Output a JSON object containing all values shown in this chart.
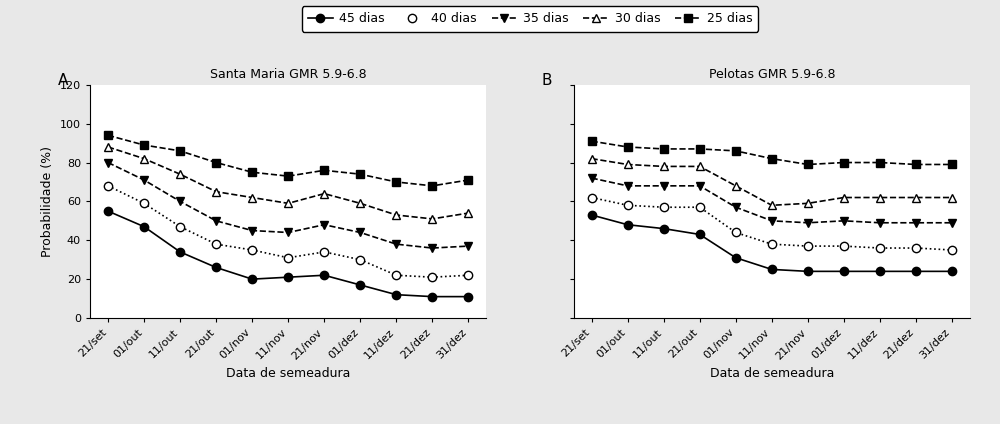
{
  "x_labels": [
    "21/set",
    "01/out",
    "11/out",
    "21/out",
    "01/nov",
    "11/nov",
    "21/nov",
    "01/dez",
    "11/dez",
    "21/dez",
    "31/dez"
  ],
  "santa_maria": {
    "title": "Santa Maria GMR 5.9-6.8",
    "dias45": [
      55,
      47,
      34,
      26,
      20,
      21,
      22,
      17,
      12,
      11,
      11
    ],
    "dias40": [
      68,
      59,
      47,
      38,
      35,
      31,
      34,
      30,
      22,
      21,
      22
    ],
    "dias35": [
      80,
      71,
      60,
      50,
      45,
      44,
      48,
      44,
      38,
      36,
      37
    ],
    "dias30": [
      88,
      82,
      74,
      65,
      62,
      59,
      64,
      59,
      53,
      51,
      54
    ],
    "dias25": [
      94,
      89,
      86,
      80,
      75,
      73,
      76,
      74,
      70,
      68,
      71
    ]
  },
  "pelotas": {
    "title": "Pelotas GMR 5.9-6.8",
    "dias45": [
      53,
      48,
      46,
      43,
      31,
      25,
      24,
      24,
      24,
      24,
      24
    ],
    "dias40": [
      62,
      58,
      57,
      57,
      44,
      38,
      37,
      37,
      36,
      36,
      35
    ],
    "dias35": [
      72,
      68,
      68,
      68,
      57,
      50,
      49,
      50,
      49,
      49,
      49
    ],
    "dias30": [
      82,
      79,
      78,
      78,
      68,
      58,
      59,
      62,
      62,
      62,
      62
    ],
    "dias25": [
      91,
      88,
      87,
      87,
      86,
      82,
      79,
      80,
      80,
      79,
      79
    ]
  },
  "ylabel": "Probabilidade (%)",
  "xlabel": "Data de semeadura",
  "ylim": [
    0,
    120
  ],
  "yticks": [
    0,
    20,
    40,
    60,
    80,
    100,
    120
  ],
  "fig_facecolor": "#e8e8e8",
  "ax_facecolor": "#ffffff"
}
